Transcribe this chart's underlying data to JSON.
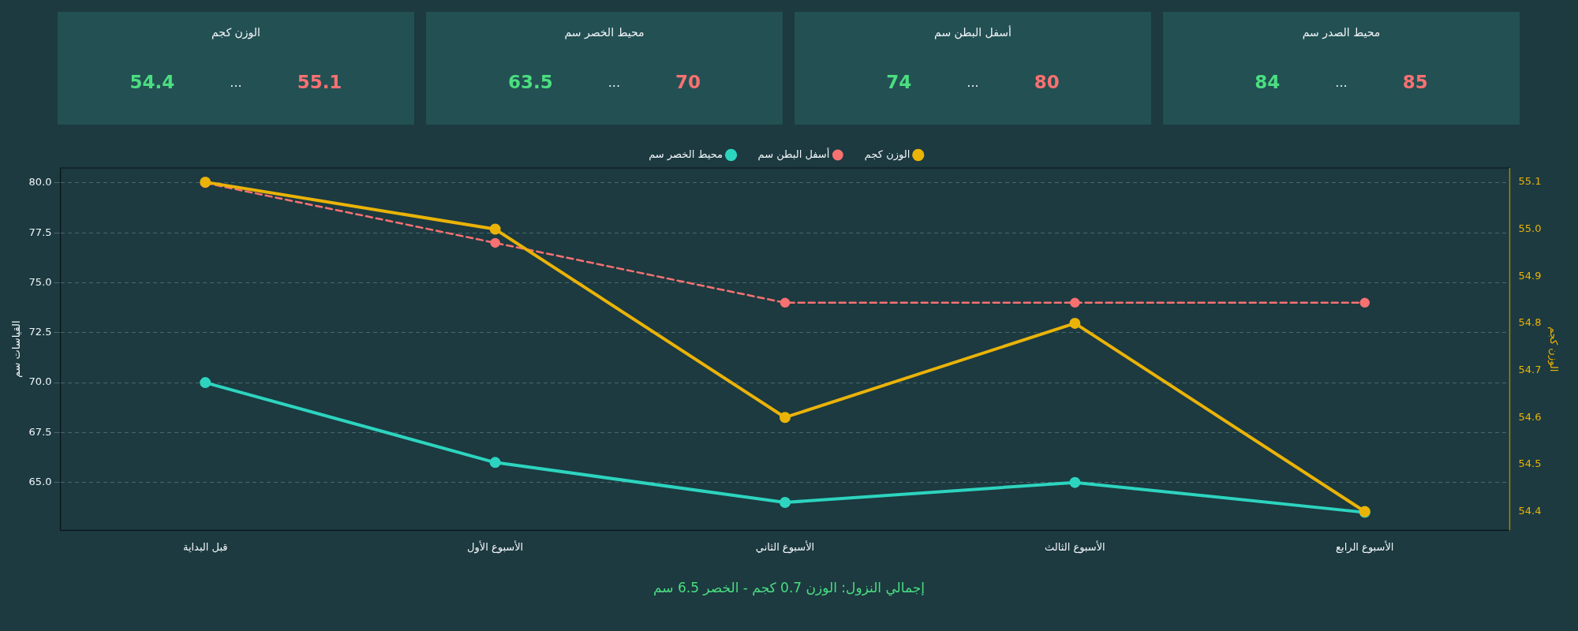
{
  "chart_data": [
    {
      "type": "other",
      "title": "الوزن كجم",
      "annotations": [
        "54.4",
        "...",
        "55.1"
      ]
    },
    {
      "type": "other",
      "title": "محيط الخصر سم",
      "annotations": [
        "63.5",
        "...",
        "70"
      ]
    },
    {
      "type": "other",
      "title": "أسفل البطن سم",
      "annotations": [
        "74",
        "...",
        "80"
      ]
    },
    {
      "type": "other",
      "title": "محيط الصدر سم",
      "annotations": [
        "84",
        "...",
        "85"
      ]
    },
    {
      "type": "line",
      "categories": [
        "قبل البداية",
        "الأسبوع الأول",
        "الأسبوع الثاني",
        "الأسبوع الثالث",
        "الأسبوع الرابع"
      ],
      "ylabel": "القياسات سم",
      "y2label": "الوزن كجم",
      "ylim": [
        62.6,
        80.75
      ],
      "yticks": [
        {
          "value": 65,
          "label": "65.0"
        },
        {
          "value": 67.5,
          "label": "67.5"
        },
        {
          "value": 70,
          "label": "70.0"
        },
        {
          "value": 72.5,
          "label": "72.5"
        },
        {
          "value": 75,
          "label": "75.0"
        },
        {
          "value": 77.5,
          "label": "77.5"
        },
        {
          "value": 80,
          "label": "80.0"
        }
      ],
      "y2lim": [
        54.36,
        55.13
      ],
      "y2ticks": [
        {
          "value": 54.4,
          "label": "54.4"
        },
        {
          "value": 54.5,
          "label": "54.5"
        },
        {
          "value": 54.6,
          "label": "54.6"
        },
        {
          "value": 54.7,
          "label": "54.7"
        },
        {
          "value": 54.8,
          "label": "54.8"
        },
        {
          "value": 54.9,
          "label": "54.9"
        },
        {
          "value": 55.0,
          "label": "55.0"
        },
        {
          "value": 55.1,
          "label": "55.1"
        }
      ],
      "grid": "y",
      "legend": "top",
      "marker": "circle",
      "annotations": [
        "إجمالي النزول: الوزن 0.7 كجم - الخصر 6.5 سم"
      ],
      "series": [
        {
          "name": "الوزن كجم",
          "color": "#eab308",
          "axis": "y2",
          "values": [
            55.1,
            55.0,
            54.6,
            54.8,
            54.4
          ]
        },
        {
          "name": "أسفل البطن سم",
          "color": "#f87171",
          "line_style": "dashed",
          "values": [
            80,
            77,
            74,
            74,
            74
          ]
        },
        {
          "name": "محيط الخصر سم",
          "color": "#2dd4bf",
          "values": [
            70,
            66,
            64,
            65,
            63.5
          ]
        }
      ]
    }
  ]
}
